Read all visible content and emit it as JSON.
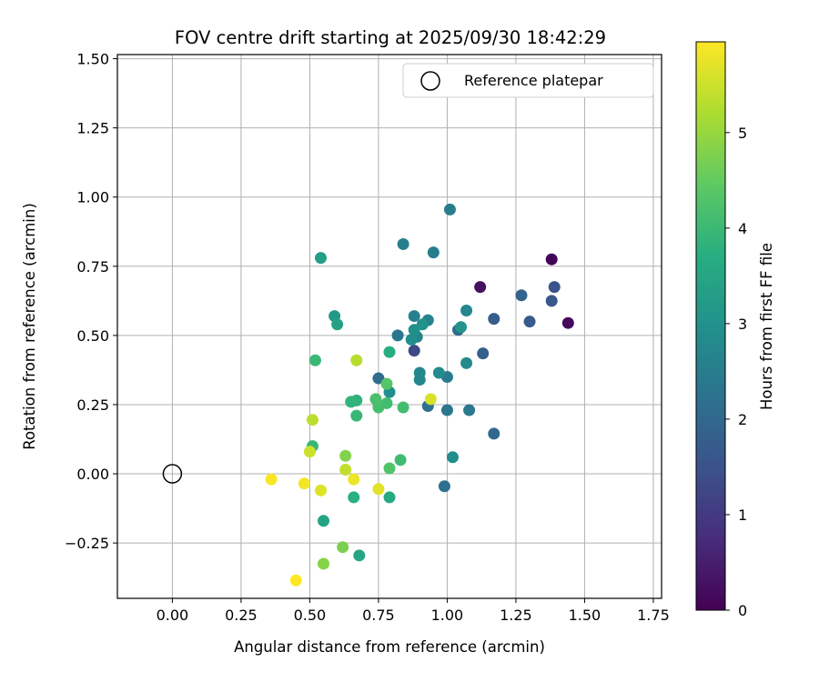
{
  "chart_data": {
    "type": "scatter",
    "title": "FOV centre drift starting at 2025/09/30 18:42:29",
    "xlabel": "Angular distance from reference (arcmin)",
    "ylabel": "Rotation from reference (arcmin)",
    "xlim": [
      -0.2,
      1.78
    ],
    "ylim": [
      -0.45,
      1.515
    ],
    "xticks": [
      0.0,
      0.25,
      0.5,
      0.75,
      1.0,
      1.25,
      1.5,
      1.75
    ],
    "xtick_labels": [
      "0.00",
      "0.25",
      "0.50",
      "0.75",
      "1.00",
      "1.25",
      "1.50",
      "1.75"
    ],
    "yticks": [
      -0.25,
      0.0,
      0.25,
      0.5,
      0.75,
      1.0,
      1.25,
      1.5
    ],
    "ytick_labels": [
      "−0.25",
      "0.00",
      "0.25",
      "0.50",
      "0.75",
      "1.00",
      "1.25",
      "1.50"
    ],
    "grid": true,
    "legend": {
      "label": "Reference platepar",
      "placement": "top-right"
    },
    "reference_point": {
      "x": 0.0,
      "y": 0.0
    },
    "colorbar": {
      "label": "Hours from first FF file",
      "colormap": "viridis",
      "range": [
        0,
        5.95
      ],
      "ticks": [
        0,
        1,
        2,
        3,
        4,
        5
      ],
      "tick_labels": [
        "0",
        "1",
        "2",
        "3",
        "4",
        "5"
      ]
    },
    "points": [
      {
        "x": 1.38,
        "y": 0.775,
        "h": 0.05
      },
      {
        "x": 1.44,
        "y": 0.545,
        "h": 0.15
      },
      {
        "x": 1.12,
        "y": 0.675,
        "h": 0.25
      },
      {
        "x": 0.88,
        "y": 0.445,
        "h": 1.3
      },
      {
        "x": 1.39,
        "y": 0.675,
        "h": 1.5
      },
      {
        "x": 1.38,
        "y": 0.625,
        "h": 1.6
      },
      {
        "x": 1.3,
        "y": 0.55,
        "h": 1.7
      },
      {
        "x": 1.17,
        "y": 0.56,
        "h": 1.75
      },
      {
        "x": 1.13,
        "y": 0.435,
        "h": 1.8
      },
      {
        "x": 1.27,
        "y": 0.645,
        "h": 1.9
      },
      {
        "x": 1.17,
        "y": 0.145,
        "h": 2.0
      },
      {
        "x": 1.04,
        "y": 0.52,
        "h": 2.1
      },
      {
        "x": 0.75,
        "y": 0.345,
        "h": 2.1
      },
      {
        "x": 0.99,
        "y": -0.045,
        "h": 2.2
      },
      {
        "x": 0.93,
        "y": 0.245,
        "h": 2.2
      },
      {
        "x": 0.82,
        "y": 0.5,
        "h": 2.3
      },
      {
        "x": 1.0,
        "y": 0.23,
        "h": 2.35
      },
      {
        "x": 1.08,
        "y": 0.23,
        "h": 2.4
      },
      {
        "x": 1.0,
        "y": 0.35,
        "h": 2.45
      },
      {
        "x": 1.01,
        "y": 0.955,
        "h": 2.5
      },
      {
        "x": 0.95,
        "y": 0.8,
        "h": 2.5
      },
      {
        "x": 0.84,
        "y": 0.83,
        "h": 2.55
      },
      {
        "x": 0.88,
        "y": 0.57,
        "h": 2.6
      },
      {
        "x": 0.93,
        "y": 0.555,
        "h": 2.6
      },
      {
        "x": 0.89,
        "y": 0.495,
        "h": 2.65
      },
      {
        "x": 0.9,
        "y": 0.34,
        "h": 2.7
      },
      {
        "x": 0.9,
        "y": 0.365,
        "h": 2.75
      },
      {
        "x": 1.07,
        "y": 0.59,
        "h": 2.75
      },
      {
        "x": 1.07,
        "y": 0.4,
        "h": 2.8
      },
      {
        "x": 0.97,
        "y": 0.365,
        "h": 2.85
      },
      {
        "x": 1.02,
        "y": 0.06,
        "h": 2.9
      },
      {
        "x": 0.87,
        "y": 0.485,
        "h": 2.9
      },
      {
        "x": 0.88,
        "y": 0.52,
        "h": 2.95
      },
      {
        "x": 0.79,
        "y": 0.295,
        "h": 2.95
      },
      {
        "x": 0.91,
        "y": 0.54,
        "h": 3.0
      },
      {
        "x": 1.05,
        "y": 0.53,
        "h": 3.05
      },
      {
        "x": 0.59,
        "y": 0.57,
        "h": 3.15
      },
      {
        "x": 0.54,
        "y": 0.78,
        "h": 3.3
      },
      {
        "x": 0.6,
        "y": 0.54,
        "h": 3.4
      },
      {
        "x": 0.55,
        "y": -0.17,
        "h": 3.45
      },
      {
        "x": 0.68,
        "y": -0.295,
        "h": 3.5
      },
      {
        "x": 0.79,
        "y": -0.085,
        "h": 3.6
      },
      {
        "x": 0.79,
        "y": 0.44,
        "h": 3.7
      },
      {
        "x": 0.66,
        "y": -0.085,
        "h": 3.75
      },
      {
        "x": 0.67,
        "y": 0.265,
        "h": 3.8
      },
      {
        "x": 0.65,
        "y": 0.26,
        "h": 3.85
      },
      {
        "x": 0.67,
        "y": 0.21,
        "h": 3.95
      },
      {
        "x": 0.51,
        "y": 0.1,
        "h": 3.95
      },
      {
        "x": 0.52,
        "y": 0.41,
        "h": 4.0
      },
      {
        "x": 0.83,
        "y": 0.05,
        "h": 4.05
      },
      {
        "x": 0.78,
        "y": 0.255,
        "h": 4.1
      },
      {
        "x": 0.84,
        "y": 0.24,
        "h": 4.1
      },
      {
        "x": 0.75,
        "y": 0.24,
        "h": 4.15
      },
      {
        "x": 0.74,
        "y": 0.27,
        "h": 4.2
      },
      {
        "x": 0.79,
        "y": 0.02,
        "h": 4.3
      },
      {
        "x": 0.78,
        "y": 0.325,
        "h": 4.35
      },
      {
        "x": 0.62,
        "y": -0.265,
        "h": 4.75
      },
      {
        "x": 0.63,
        "y": 0.065,
        "h": 4.8
      },
      {
        "x": 0.55,
        "y": -0.325,
        "h": 4.85
      },
      {
        "x": 0.67,
        "y": 0.41,
        "h": 5.3
      },
      {
        "x": 0.51,
        "y": 0.195,
        "h": 5.35
      },
      {
        "x": 0.63,
        "y": 0.015,
        "h": 5.4
      },
      {
        "x": 0.5,
        "y": 0.08,
        "h": 5.5
      },
      {
        "x": 0.94,
        "y": 0.27,
        "h": 5.6
      },
      {
        "x": 0.54,
        "y": -0.06,
        "h": 5.65
      },
      {
        "x": 0.75,
        "y": -0.055,
        "h": 5.7
      },
      {
        "x": 0.66,
        "y": -0.02,
        "h": 5.8
      },
      {
        "x": 0.48,
        "y": -0.035,
        "h": 5.85
      },
      {
        "x": 0.36,
        "y": -0.02,
        "h": 5.9
      },
      {
        "x": 0.45,
        "y": -0.385,
        "h": 5.95
      }
    ]
  }
}
